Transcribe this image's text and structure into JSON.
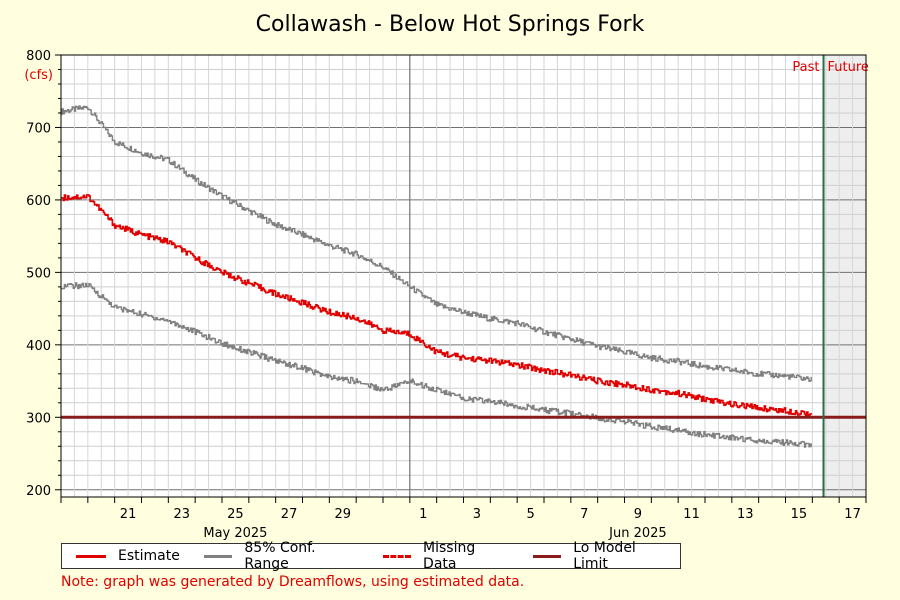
{
  "chart_data": {
    "type": "line",
    "title": "Collawash - Below Hot Springs Fork",
    "ylabel": "(cfs)",
    "ylim": [
      190,
      800
    ],
    "y_ticks": [
      200,
      300,
      400,
      500,
      600,
      700,
      800
    ],
    "x_start": "2025-05-19",
    "x_end": "2025-06-18",
    "x_ticks": [
      {
        "date": "2025-05-21",
        "label": "21"
      },
      {
        "date": "2025-05-23",
        "label": "23"
      },
      {
        "date": "2025-05-25",
        "label": "25"
      },
      {
        "date": "2025-05-27",
        "label": "27"
      },
      {
        "date": "2025-05-29",
        "label": "29"
      },
      {
        "date": "2025-06-01",
        "label": "1"
      },
      {
        "date": "2025-06-03",
        "label": "3"
      },
      {
        "date": "2025-06-05",
        "label": "5"
      },
      {
        "date": "2025-06-07",
        "label": "7"
      },
      {
        "date": "2025-06-09",
        "label": "9"
      },
      {
        "date": "2025-06-11",
        "label": "11"
      },
      {
        "date": "2025-06-13",
        "label": "13"
      },
      {
        "date": "2025-06-15",
        "label": "15"
      },
      {
        "date": "2025-06-17",
        "label": "17"
      }
    ],
    "month_labels": [
      {
        "date": "2025-05-25",
        "label": "May 2025"
      },
      {
        "date": "2025-06-09",
        "label": "Jun 2025"
      }
    ],
    "past_label": "Past",
    "future_label": "Future",
    "now": "2025-06-16T10:00",
    "lo_model_limit": 300,
    "x": [
      "2025-05-19",
      "2025-05-20",
      "2025-05-21",
      "2025-05-22",
      "2025-05-23",
      "2025-05-24",
      "2025-05-25",
      "2025-05-26",
      "2025-05-27",
      "2025-05-28",
      "2025-05-29",
      "2025-05-30",
      "2025-05-31",
      "2025-06-01",
      "2025-06-02",
      "2025-06-03",
      "2025-06-04",
      "2025-06-05",
      "2025-06-06",
      "2025-06-07",
      "2025-06-08",
      "2025-06-09",
      "2025-06-10",
      "2025-06-11",
      "2025-06-12",
      "2025-06-13",
      "2025-06-14",
      "2025-06-15",
      "2025-06-16"
    ],
    "series": [
      {
        "name": "85% Conf. Range",
        "key": "upper",
        "color": "#808080",
        "values": [
          722,
          728,
          680,
          665,
          655,
          628,
          605,
          585,
          566,
          552,
          537,
          525,
          507,
          480,
          455,
          445,
          436,
          430,
          418,
          408,
          398,
          390,
          382,
          377,
          370,
          365,
          360,
          357,
          352
        ]
      },
      {
        "name": "Estimate",
        "color": "#e00000",
        "values": [
          603,
          605,
          565,
          552,
          542,
          520,
          500,
          485,
          470,
          458,
          445,
          437,
          420,
          415,
          390,
          382,
          378,
          372,
          365,
          358,
          350,
          345,
          338,
          333,
          325,
          318,
          313,
          309,
          305
        ]
      },
      {
        "name": "85% Conf. Range",
        "key": "lower",
        "color": "#808080",
        "values": [
          481,
          482,
          452,
          442,
          433,
          418,
          402,
          390,
          378,
          368,
          355,
          350,
          338,
          350,
          338,
          326,
          322,
          316,
          310,
          305,
          299,
          294,
          287,
          282,
          276,
          272,
          268,
          265,
          262
        ]
      }
    ]
  },
  "legend": {
    "estimate": "Estimate",
    "conf_range": "85% Conf. Range",
    "missing": "Missing Data",
    "lo_limit": "Lo Model Limit"
  },
  "note": "Note: graph was generated by Dreamflows, using estimated data.",
  "colors": {
    "estimate": "#e00000",
    "conf": "#808080",
    "lo_limit": "#8b1a1a",
    "now_line": "#2e6b4a",
    "background": "#ffffe0",
    "future_fill": "#eeeeee"
  }
}
